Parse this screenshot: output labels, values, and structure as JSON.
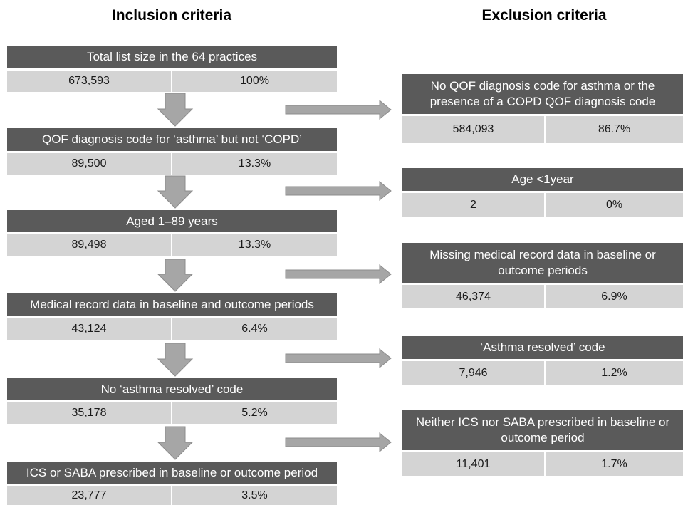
{
  "headings": {
    "inclusion": "Inclusion criteria",
    "exclusion": "Exclusion criteria"
  },
  "inclusion": [
    {
      "label": "Total list size in the 64 practices",
      "count": "673,593",
      "pct": "100%"
    },
    {
      "label": "QOF diagnosis code for ‘asthma’ but not ‘COPD’",
      "count": "89,500",
      "pct": "13.3%"
    },
    {
      "label": "Aged 1–89 years",
      "count": "89,498",
      "pct": "13.3%"
    },
    {
      "label": "Medical record data in baseline and outcome periods",
      "count": "43,124",
      "pct": "6.4%"
    },
    {
      "label": "No ‘asthma resolved’ code",
      "count": "35,178",
      "pct": "5.2%"
    },
    {
      "label": "ICS or SABA prescribed in baseline or outcome period",
      "count": "23,777",
      "pct": "3.5%"
    }
  ],
  "exclusion": [
    {
      "label": "No QOF diagnosis code for asthma or the presence of a COPD QOF diagnosis code",
      "count": "584,093",
      "pct": "86.7%"
    },
    {
      "label": "Age <1year",
      "count": "2",
      "pct": "0%"
    },
    {
      "label": "Missing medical record data in baseline or outcome periods",
      "count": "46,374",
      "pct": "6.9%"
    },
    {
      "label": "‘Asthma resolved’ code",
      "count": "7,946",
      "pct": "1.2%"
    },
    {
      "label": "Neither ICS nor SABA prescribed in baseline or outcome period",
      "count": "11,401",
      "pct": "1.7%"
    }
  ]
}
